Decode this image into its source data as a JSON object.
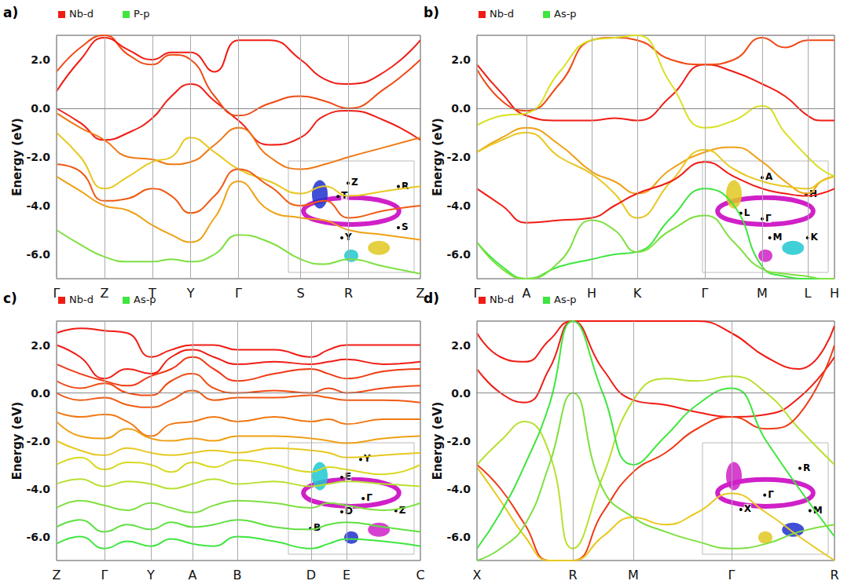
{
  "chart_data": [
    {
      "type": "line",
      "panel_label": "a)",
      "y_label": "Energy (eV)",
      "grid": true,
      "fermi_level": 0,
      "series": [
        {
          "name": "Nb-d",
          "color": "#f01c14"
        },
        {
          "name": "P-p",
          "color": "#3ee63e"
        }
      ],
      "xlim": [
        0,
        7.6
      ],
      "xticks": [
        {
          "value": 0,
          "label": "Γ"
        },
        {
          "value": 1.0,
          "label": "Z"
        },
        {
          "value": 2.0,
          "label": "T"
        },
        {
          "value": 2.8,
          "label": "Y"
        },
        {
          "value": 3.8,
          "label": "Γ"
        },
        {
          "value": 5.1,
          "label": "S"
        },
        {
          "value": 6.1,
          "label": "R"
        },
        {
          "value": 7.6,
          "label": "Z"
        }
      ],
      "ylim": [
        -7,
        3
      ],
      "yticks": [
        {
          "value": -6,
          "label": "-6.0"
        },
        {
          "value": -4,
          "label": "-4.0"
        },
        {
          "value": -2,
          "label": "-2.0"
        },
        {
          "value": 0,
          "label": "0.0"
        },
        {
          "value": 2,
          "label": "2.0"
        }
      ],
      "x": [
        0,
        0.5,
        1.0,
        1.5,
        2.0,
        2.4,
        2.8,
        3.3,
        3.8,
        4.45,
        5.1,
        5.6,
        6.1,
        6.85,
        7.6
      ],
      "bands": [
        {
          "color": "#f01c14",
          "values": [
            0.0,
            -0.6,
            -1.3,
            -1.0,
            -0.4,
            0.5,
            1.0,
            0.3,
            -0.5,
            -1.5,
            -1.2,
            -0.3,
            -0.1,
            -0.5,
            -1.3
          ]
        },
        {
          "color": "#f04a14",
          "values": [
            1.5,
            2.5,
            3.0,
            2.2,
            1.8,
            2.2,
            2.0,
            0.5,
            -0.3,
            0.2,
            0.5,
            0.3,
            0.0,
            0.8,
            2.0
          ]
        },
        {
          "color": "#f01c14",
          "values": [
            0.7,
            2.0,
            2.9,
            2.4,
            2.0,
            2.3,
            2.3,
            1.5,
            2.8,
            2.8,
            2.0,
            1.2,
            1.0,
            1.5,
            2.8
          ]
        },
        {
          "color": "#f07814",
          "values": [
            -0.2,
            -0.8,
            -1.3,
            -2.0,
            -2.1,
            -2.3,
            -2.2,
            -1.5,
            -0.8,
            -2.0,
            -2.5,
            -2.3,
            -2.0,
            -1.6,
            -1.2
          ]
        },
        {
          "color": "#e8c820",
          "values": [
            -1.0,
            -2.0,
            -3.3,
            -2.8,
            -2.2,
            -2.0,
            -1.2,
            -1.8,
            -2.5,
            -3.0,
            -3.5,
            -3.2,
            -3.6,
            -3.4,
            -3.2
          ]
        },
        {
          "color": "#f05a14",
          "values": [
            -2.3,
            -2.6,
            -3.8,
            -3.7,
            -3.3,
            -3.6,
            -4.3,
            -3.6,
            -2.5,
            -3.2,
            -4.0,
            -3.8,
            -4.5,
            -4.2,
            -4.0
          ]
        },
        {
          "color": "#f0a014",
          "values": [
            -2.8,
            -3.4,
            -4.0,
            -4.2,
            -4.8,
            -5.2,
            -5.5,
            -4.5,
            -3.0,
            -4.2,
            -4.5,
            -4.6,
            -5.0,
            -5.2,
            -5.4
          ]
        },
        {
          "color": "#7ee040",
          "values": [
            -5.0,
            -5.6,
            -6.1,
            -6.3,
            -6.3,
            -6.2,
            -6.3,
            -6.0,
            -5.2,
            -5.5,
            -6.2,
            -6.4,
            -6.2,
            -6.5,
            -6.8
          ]
        }
      ],
      "inset_labels": [
        "Z",
        "T",
        "R",
        "S",
        "Y"
      ]
    },
    {
      "type": "line",
      "panel_label": "b)",
      "y_label": "Energy (eV)",
      "grid": true,
      "fermi_level": 0,
      "series": [
        {
          "name": "Nb-d",
          "color": "#f01c14"
        },
        {
          "name": "As-p",
          "color": "#3ee63e"
        }
      ],
      "xlim": [
        0,
        4.55
      ],
      "xticks": [
        {
          "value": 0,
          "label": "Γ"
        },
        {
          "value": 0.63,
          "label": "A"
        },
        {
          "value": 1.46,
          "label": "H"
        },
        {
          "value": 2.04,
          "label": "K"
        },
        {
          "value": 2.9,
          "label": "Γ"
        },
        {
          "value": 3.63,
          "label": "M"
        },
        {
          "value": 4.21,
          "label": "L"
        },
        {
          "value": 4.55,
          "label": "H"
        }
      ],
      "ylim": [
        -7,
        3
      ],
      "yticks": [
        {
          "value": -6,
          "label": "-6.0"
        },
        {
          "value": -4,
          "label": "-4.0"
        },
        {
          "value": -2,
          "label": "-2.0"
        },
        {
          "value": 0,
          "label": "0.0"
        },
        {
          "value": 2,
          "label": "2.0"
        }
      ],
      "x": [
        0,
        0.32,
        0.63,
        1.05,
        1.46,
        1.75,
        2.04,
        2.47,
        2.9,
        3.27,
        3.63,
        3.92,
        4.21,
        4.38,
        4.55
      ],
      "bands": [
        {
          "color": "#f01c14",
          "values": [
            1.8,
            0.6,
            -0.3,
            -0.5,
            -0.5,
            -0.4,
            -0.5,
            0.5,
            1.8,
            1.5,
            1.0,
            0.5,
            -0.3,
            -0.5,
            -0.5
          ]
        },
        {
          "color": "#f04a14",
          "values": [
            1.6,
            0.3,
            -0.1,
            1.0,
            2.8,
            2.9,
            2.8,
            2.0,
            1.8,
            2.0,
            2.9,
            2.5,
            2.8,
            2.8,
            2.8
          ]
        },
        {
          "color": "#d8e020",
          "values": [
            -0.7,
            -0.3,
            -0.2,
            1.5,
            2.8,
            2.9,
            3.0,
            1.0,
            -0.8,
            -0.5,
            0.1,
            -1.0,
            -2.0,
            -2.5,
            -2.8
          ]
        },
        {
          "color": "#f0a014",
          "values": [
            -1.8,
            -1.2,
            -0.8,
            -1.5,
            -2.6,
            -3.0,
            -3.5,
            -2.5,
            -1.8,
            -1.6,
            -2.2,
            -3.0,
            -3.5,
            -3.0,
            -2.8
          ]
        },
        {
          "color": "#e8c820",
          "values": [
            -1.8,
            -1.3,
            -1.0,
            -2.0,
            -2.7,
            -3.5,
            -4.5,
            -3.0,
            -1.7,
            -2.5,
            -3.0,
            -3.2,
            -3.3,
            -3.0,
            -2.8
          ]
        },
        {
          "color": "#f01c14",
          "values": [
            -3.3,
            -4.0,
            -4.7,
            -4.6,
            -4.5,
            -4.0,
            -3.5,
            -3.0,
            -2.2,
            -2.8,
            -3.3,
            -3.5,
            -3.6,
            -3.5,
            -3.3
          ]
        },
        {
          "color": "#3ee63e",
          "values": [
            -5.5,
            -6.5,
            -7.0,
            -6.5,
            -6.2,
            -6.0,
            -5.9,
            -4.5,
            -3.3,
            -4.0,
            -6.5,
            -6.9,
            -7.0,
            -7.0,
            -7.0
          ]
        },
        {
          "color": "#7ee040",
          "values": [
            -5.5,
            -6.6,
            -7.0,
            -6.3,
            -4.6,
            -5.0,
            -5.9,
            -5.0,
            -4.4,
            -5.5,
            -6.6,
            -6.8,
            -6.9,
            -7.0,
            -7.0
          ]
        }
      ],
      "inset_labels": [
        "A",
        "H",
        "L",
        "Γ",
        "M",
        "K"
      ]
    },
    {
      "type": "line",
      "panel_label": "c)",
      "y_label": "Energy (eV)",
      "grid": true,
      "fermi_level": 0,
      "series": [
        {
          "name": "Nb-d",
          "color": "#f01c14"
        },
        {
          "name": "As-p",
          "color": "#3ee63e"
        }
      ],
      "xlim": [
        0,
        4.63
      ],
      "xticks": [
        {
          "value": 0,
          "label": "Z"
        },
        {
          "value": 0.61,
          "label": "Γ"
        },
        {
          "value": 1.2,
          "label": "Y"
        },
        {
          "value": 1.73,
          "label": "A"
        },
        {
          "value": 2.3,
          "label": "B"
        },
        {
          "value": 3.24,
          "label": "D"
        },
        {
          "value": 3.69,
          "label": "E"
        },
        {
          "value": 4.63,
          "label": "C"
        }
      ],
      "ylim": [
        -7,
        3
      ],
      "yticks": [
        {
          "value": -6,
          "label": "-6.0"
        },
        {
          "value": -4,
          "label": "-4.0"
        },
        {
          "value": -2,
          "label": "-2.0"
        },
        {
          "value": 0,
          "label": "0.0"
        },
        {
          "value": 2,
          "label": "2.0"
        }
      ],
      "x": [
        0,
        0.3,
        0.61,
        0.9,
        1.2,
        1.46,
        1.73,
        2.0,
        2.3,
        2.77,
        3.24,
        3.46,
        3.69,
        4.16,
        4.63
      ],
      "bands": [
        {
          "color": "#f01c14",
          "values": [
            2.5,
            2.7,
            2.6,
            2.5,
            1.5,
            1.8,
            2.0,
            2.0,
            1.8,
            1.8,
            1.5,
            1.8,
            2.0,
            2.0,
            2.0
          ]
        },
        {
          "color": "#f01c14",
          "values": [
            2.0,
            1.5,
            0.6,
            1.0,
            0.8,
            1.5,
            1.8,
            1.5,
            1.2,
            1.3,
            1.2,
            1.3,
            1.4,
            1.2,
            1.3
          ]
        },
        {
          "color": "#f03a14",
          "values": [
            1.2,
            0.8,
            0.5,
            0.3,
            0.7,
            1.0,
            1.5,
            1.0,
            0.5,
            0.8,
            1.0,
            0.8,
            0.6,
            0.9,
            1.0
          ]
        },
        {
          "color": "#f04a14",
          "values": [
            0.5,
            0.2,
            0.4,
            0.0,
            -0.1,
            0.5,
            0.8,
            0.2,
            0.0,
            0.1,
            0.0,
            0.2,
            0.0,
            0.2,
            0.3
          ]
        },
        {
          "color": "#f05a14",
          "values": [
            0.0,
            -0.3,
            -0.2,
            -0.5,
            -0.6,
            -0.3,
            0.1,
            -0.3,
            -0.2,
            -0.2,
            -0.1,
            -0.2,
            -0.3,
            -0.3,
            -0.4
          ]
        },
        {
          "color": "#f07814",
          "values": [
            -0.8,
            -1.0,
            -0.9,
            -1.2,
            -1.8,
            -1.3,
            -1.2,
            -1.0,
            -1.2,
            -1.0,
            -1.2,
            -1.1,
            -1.3,
            -1.1,
            -1.1
          ]
        },
        {
          "color": "#f0a014",
          "values": [
            -1.2,
            -1.8,
            -1.9,
            -1.5,
            -1.9,
            -2.0,
            -1.9,
            -2.0,
            -1.8,
            -1.8,
            -1.9,
            -2.0,
            -2.1,
            -1.9,
            -1.8
          ]
        },
        {
          "color": "#e8c820",
          "values": [
            -2.0,
            -2.4,
            -2.6,
            -2.3,
            -2.5,
            -2.6,
            -2.5,
            -2.4,
            -2.5,
            -2.3,
            -2.4,
            -2.5,
            -2.7,
            -2.6,
            -2.5
          ]
        },
        {
          "color": "#d8d820",
          "values": [
            -3.0,
            -2.7,
            -3.2,
            -2.9,
            -3.0,
            -3.3,
            -2.9,
            -3.1,
            -2.8,
            -3.0,
            -3.3,
            -3.1,
            -3.2,
            -3.4,
            -3.0
          ]
        },
        {
          "color": "#b8e030",
          "values": [
            -3.8,
            -3.6,
            -3.9,
            -3.7,
            -3.8,
            -4.0,
            -3.8,
            -3.6,
            -3.8,
            -3.7,
            -3.9,
            -3.8,
            -3.7,
            -3.8,
            -3.9
          ]
        },
        {
          "color": "#7ee040",
          "values": [
            -4.8,
            -4.5,
            -4.7,
            -4.9,
            -4.6,
            -4.8,
            -5.0,
            -4.7,
            -4.5,
            -4.6,
            -4.8,
            -4.6,
            -4.7,
            -4.9,
            -4.6
          ]
        },
        {
          "color": "#5ee040",
          "values": [
            -5.6,
            -5.3,
            -5.8,
            -5.5,
            -5.7,
            -5.4,
            -5.6,
            -5.5,
            -5.3,
            -5.6,
            -5.7,
            -5.5,
            -5.4,
            -5.6,
            -5.8
          ]
        },
        {
          "color": "#3ee63e",
          "values": [
            -6.3,
            -6.0,
            -6.5,
            -6.2,
            -6.4,
            -6.1,
            -6.3,
            -6.4,
            -6.0,
            -6.2,
            -6.5,
            -6.3,
            -6.1,
            -6.2,
            -6.4
          ]
        }
      ],
      "inset_labels": [
        "Y",
        "E",
        "Γ",
        "D",
        "B",
        "Z"
      ]
    },
    {
      "type": "line",
      "panel_label": "d)",
      "y_label": "Energy (eV)",
      "grid": true,
      "fermi_level": 0,
      "series": [
        {
          "name": "Nb-d",
          "color": "#f01c14"
        },
        {
          "name": "As-p",
          "color": "#3ee63e"
        }
      ],
      "xlim": [
        0,
        4.55
      ],
      "xticks": [
        {
          "value": 0,
          "label": "X"
        },
        {
          "value": 1.22,
          "label": "R"
        },
        {
          "value": 1.99,
          "label": "M"
        },
        {
          "value": 3.24,
          "label": "Γ"
        },
        {
          "value": 4.55,
          "label": "R"
        }
      ],
      "ylim": [
        -7,
        3
      ],
      "yticks": [
        {
          "value": -6,
          "label": "-6.0"
        },
        {
          "value": -4,
          "label": "-4.0"
        },
        {
          "value": -2,
          "label": "-2.0"
        },
        {
          "value": 0,
          "label": "0.0"
        },
        {
          "value": 2,
          "label": "2.0"
        }
      ],
      "x": [
        0,
        0.3,
        0.61,
        0.92,
        1.22,
        1.6,
        1.99,
        2.4,
        2.8,
        3.24,
        3.68,
        4.1,
        4.55
      ],
      "bands": [
        {
          "color": "#f01c14",
          "values": [
            2.5,
            1.5,
            1.3,
            2.2,
            3.0,
            3.0,
            3.0,
            3.0,
            3.0,
            2.5,
            1.5,
            1.0,
            2.8
          ]
        },
        {
          "color": "#f01c14",
          "values": [
            1.0,
            0.0,
            -0.4,
            1.0,
            3.0,
            1.0,
            -0.3,
            -0.5,
            -0.8,
            -1.0,
            -0.9,
            -0.2,
            1.5
          ]
        },
        {
          "color": "#b8e030",
          "values": [
            -3.0,
            -2.0,
            -1.2,
            -2.5,
            -6.5,
            -3.5,
            -0.3,
            0.6,
            0.5,
            0.7,
            0.0,
            -1.5,
            -3.0
          ]
        },
        {
          "color": "#f03a14",
          "values": [
            -3.0,
            -4.0,
            -5.5,
            -7.0,
            -7.0,
            -5.0,
            -3.3,
            -2.5,
            -1.5,
            -1.0,
            -1.5,
            -0.9,
            2.0
          ]
        },
        {
          "color": "#e8c820",
          "values": [
            -3.1,
            -4.5,
            -6.0,
            -7.0,
            -7.0,
            -6.0,
            -5.2,
            -5.5,
            -5.0,
            -4.2,
            -5.0,
            -6.0,
            -7.0
          ]
        },
        {
          "color": "#3ee63e",
          "values": [
            -6.5,
            -5.0,
            -3.0,
            -0.5,
            3.0,
            0.0,
            -3.0,
            -1.8,
            -0.5,
            0.2,
            -2.0,
            -4.0,
            -6.0
          ]
        },
        {
          "color": "#7ee040",
          "values": [
            -7.0,
            -6.5,
            -5.5,
            -3.0,
            0.0,
            -4.0,
            -5.2,
            -5.8,
            -6.2,
            -6.5,
            -6.3,
            -5.8,
            -5.5
          ]
        }
      ],
      "inset_labels": [
        "R",
        "X",
        "Γ",
        "M"
      ]
    }
  ]
}
